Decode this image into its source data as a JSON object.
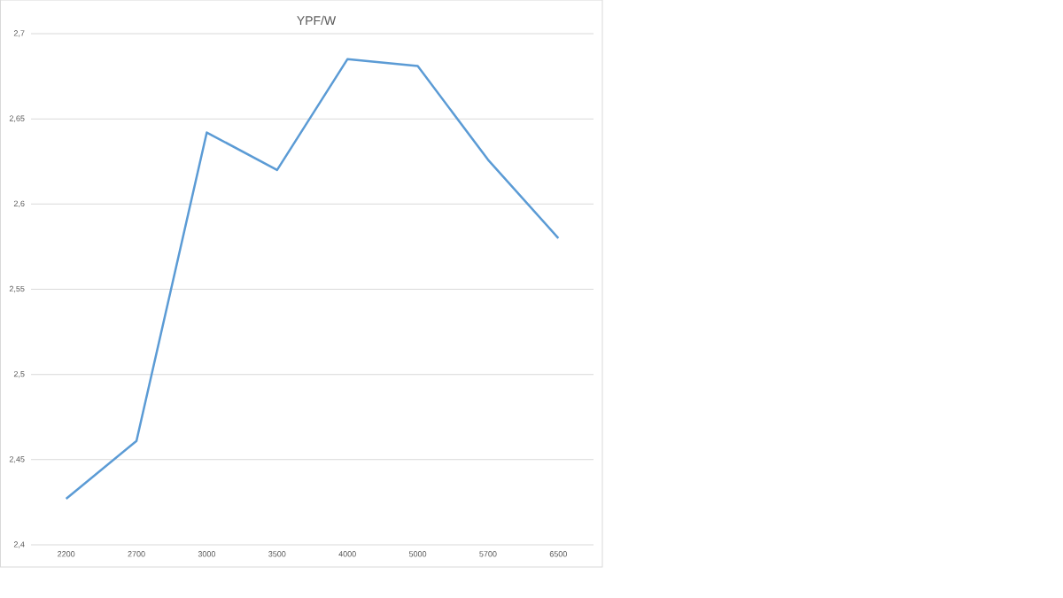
{
  "chart_data": {
    "type": "line",
    "title": "YPF/W",
    "categories": [
      "2200",
      "2700",
      "3000",
      "3500",
      "4000",
      "5000",
      "5700",
      "6500"
    ],
    "series": [
      {
        "color": "#5b9bd5",
        "values": [
          2.427,
          2.461,
          2.642,
          2.62,
          2.685,
          2.681,
          2.626,
          2.58
        ]
      }
    ],
    "ylim": [
      2.4,
      2.7
    ],
    "yticks": [
      {
        "value": 2.4,
        "label": "2,4"
      },
      {
        "value": 2.45,
        "label": "2,45"
      },
      {
        "value": 2.5,
        "label": "2,5"
      },
      {
        "value": 2.55,
        "label": "2,55"
      },
      {
        "value": 2.6,
        "label": "2,6"
      },
      {
        "value": 2.65,
        "label": "2,65"
      },
      {
        "value": 2.7,
        "label": "2,7"
      }
    ],
    "grid": "y",
    "marker": "none",
    "line_style": "solid"
  }
}
